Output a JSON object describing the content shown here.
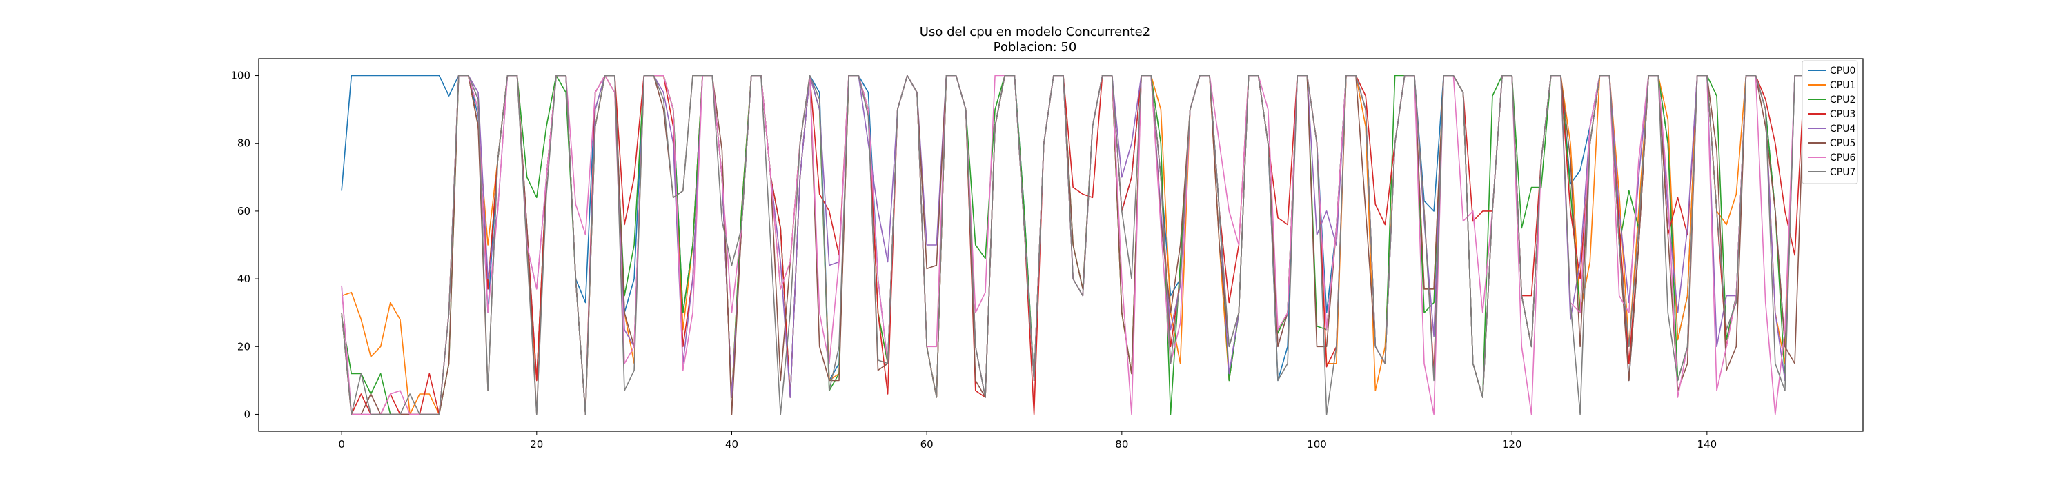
{
  "chart_data": {
    "type": "line",
    "title": "Uso del cpu en modelo Concurrente2",
    "subtitle": "Poblacion: 50",
    "xlabel": "",
    "ylabel": "",
    "xlim": [
      -8.5,
      156
    ],
    "ylim": [
      -5,
      105
    ],
    "x_ticks": [
      0,
      20,
      40,
      60,
      80,
      100,
      120,
      140
    ],
    "y_ticks": [
      0,
      20,
      40,
      60,
      80,
      100
    ],
    "grid": false,
    "legend_position": "top-right",
    "series": [
      {
        "name": "CPU0",
        "color": "#1f77b4",
        "values": [
          66,
          100,
          100,
          100,
          100,
          100,
          100,
          100,
          100,
          100,
          100,
          94,
          100,
          100,
          88,
          30,
          75,
          100,
          100,
          55,
          10,
          70,
          100,
          100,
          40,
          33,
          95,
          100,
          100,
          30,
          40,
          100,
          100,
          100,
          90,
          30,
          50,
          100,
          100,
          70,
          5,
          55,
          100,
          100,
          70,
          55,
          5,
          70,
          100,
          95,
          10,
          15,
          100,
          100,
          95,
          40,
          15,
          90,
          100,
          95,
          20,
          5,
          100,
          100,
          90,
          20,
          5,
          85,
          100,
          100,
          60,
          10,
          80,
          100,
          100,
          40,
          35,
          85,
          100,
          100,
          60,
          70,
          100,
          100,
          70,
          35,
          40,
          90,
          100,
          100,
          60,
          10,
          30,
          100,
          100,
          80,
          10,
          20,
          100,
          100,
          80,
          30,
          55,
          100,
          100,
          90,
          20,
          15,
          80,
          100,
          100,
          63,
          60,
          100,
          100,
          95,
          15,
          5,
          60,
          100,
          100,
          35,
          20,
          75,
          100,
          100,
          68,
          72,
          85,
          100,
          100,
          55,
          10,
          50,
          100,
          100,
          80,
          22,
          35,
          100,
          100,
          60,
          22,
          35,
          100,
          100,
          90,
          60,
          20,
          100,
          100
        ]
      },
      {
        "name": "CPU1",
        "color": "#ff7f0e",
        "values": [
          35,
          36,
          28,
          17,
          20,
          33,
          28,
          0,
          6,
          6,
          0,
          30,
          100,
          100,
          85,
          50,
          75,
          100,
          100,
          50,
          10,
          70,
          100,
          100,
          40,
          0,
          85,
          100,
          95,
          30,
          15,
          100,
          100,
          100,
          90,
          25,
          50,
          100,
          100,
          70,
          5,
          60,
          100,
          100,
          70,
          37,
          45,
          80,
          100,
          90,
          10,
          12,
          100,
          100,
          90,
          30,
          15,
          90,
          100,
          95,
          20,
          5,
          100,
          100,
          90,
          20,
          5,
          85,
          100,
          100,
          55,
          10,
          80,
          100,
          100,
          40,
          35,
          85,
          100,
          100,
          30,
          12,
          100,
          100,
          90,
          30,
          15,
          90,
          100,
          100,
          50,
          10,
          30,
          100,
          100,
          80,
          24,
          30,
          100,
          100,
          80,
          15,
          15,
          100,
          100,
          85,
          7,
          20,
          80,
          100,
          100,
          37,
          37,
          100,
          100,
          95,
          15,
          5,
          60,
          100,
          100,
          35,
          20,
          75,
          100,
          100,
          80,
          30,
          45,
          100,
          100,
          65,
          20,
          60,
          100,
          100,
          87,
          22,
          35,
          100,
          100,
          60,
          56,
          65,
          100,
          100,
          90,
          30,
          15,
          100,
          100
        ]
      },
      {
        "name": "CPU2",
        "color": "#2ca02c",
        "values": [
          29,
          12,
          12,
          6,
          12,
          0,
          0,
          0,
          0,
          0,
          0,
          15,
          100,
          100,
          85,
          37,
          75,
          100,
          100,
          70,
          64,
          85,
          100,
          95,
          40,
          0,
          90,
          100,
          95,
          35,
          50,
          100,
          100,
          100,
          90,
          30,
          50,
          100,
          100,
          70,
          5,
          60,
          100,
          100,
          70,
          55,
          5,
          70,
          100,
          90,
          7,
          12,
          100,
          100,
          90,
          30,
          15,
          90,
          100,
          95,
          20,
          5,
          100,
          100,
          90,
          50,
          46,
          90,
          100,
          100,
          60,
          10,
          80,
          100,
          100,
          50,
          37,
          85,
          100,
          100,
          30,
          12,
          100,
          100,
          80,
          0,
          45,
          90,
          100,
          100,
          60,
          10,
          30,
          100,
          100,
          80,
          24,
          30,
          100,
          100,
          26,
          25,
          55,
          100,
          100,
          90,
          20,
          15,
          100,
          100,
          100,
          30,
          33,
          100,
          100,
          95,
          15,
          5,
          94,
          100,
          100,
          55,
          67,
          67,
          100,
          100,
          66,
          30,
          80,
          100,
          100,
          50,
          66,
          55,
          100,
          100,
          80,
          10,
          20,
          100,
          100,
          94,
          22,
          35,
          100,
          100,
          90,
          60,
          10,
          100,
          100
        ]
      },
      {
        "name": "CPU3",
        "color": "#d62728",
        "values": [
          30,
          0,
          6,
          0,
          0,
          6,
          0,
          0,
          0,
          12,
          0,
          30,
          100,
          100,
          85,
          37,
          75,
          100,
          100,
          55,
          10,
          70,
          100,
          100,
          40,
          0,
          95,
          100,
          100,
          56,
          70,
          100,
          100,
          100,
          85,
          20,
          40,
          100,
          100,
          70,
          5,
          55,
          100,
          100,
          70,
          55,
          5,
          70,
          100,
          65,
          60,
          47,
          100,
          100,
          90,
          30,
          6,
          90,
          100,
          95,
          20,
          5,
          100,
          100,
          90,
          7,
          5,
          85,
          100,
          100,
          55,
          0,
          80,
          100,
          100,
          67,
          65,
          64,
          100,
          100,
          60,
          70,
          100,
          100,
          70,
          20,
          40,
          90,
          100,
          100,
          60,
          33,
          50,
          100,
          100,
          80,
          58,
          56,
          100,
          100,
          80,
          14,
          20,
          100,
          100,
          94,
          62,
          56,
          80,
          100,
          100,
          60,
          12,
          100,
          100,
          95,
          57,
          60,
          60,
          100,
          100,
          35,
          35,
          75,
          100,
          100,
          60,
          40,
          80,
          100,
          100,
          56,
          15,
          50,
          100,
          100,
          53,
          64,
          53,
          100,
          100,
          60,
          20,
          35,
          100,
          100,
          93,
          80,
          60,
          47,
          100
        ]
      },
      {
        "name": "CPU4",
        "color": "#9467bd",
        "values": [
          38,
          0,
          0,
          0,
          0,
          0,
          0,
          0,
          0,
          0,
          0,
          30,
          100,
          100,
          95,
          40,
          60,
          100,
          100,
          50,
          37,
          70,
          100,
          100,
          40,
          0,
          90,
          100,
          100,
          25,
          20,
          100,
          100,
          95,
          80,
          15,
          40,
          100,
          100,
          70,
          5,
          55,
          100,
          100,
          70,
          45,
          5,
          70,
          100,
          90,
          44,
          45,
          100,
          100,
          80,
          60,
          45,
          90,
          100,
          95,
          50,
          50,
          100,
          100,
          90,
          20,
          5,
          85,
          100,
          100,
          55,
          10,
          80,
          100,
          100,
          40,
          35,
          85,
          100,
          100,
          70,
          80,
          100,
          100,
          60,
          25,
          38,
          90,
          100,
          100,
          60,
          12,
          30,
          100,
          100,
          80,
          20,
          30,
          100,
          100,
          53,
          60,
          50,
          100,
          100,
          90,
          20,
          15,
          80,
          100,
          100,
          57,
          23,
          100,
          100,
          95,
          15,
          5,
          60,
          100,
          100,
          35,
          20,
          75,
          100,
          100,
          28,
          45,
          85,
          100,
          100,
          60,
          33,
          70,
          100,
          100,
          60,
          30,
          55,
          100,
          100,
          20,
          35,
          35,
          100,
          100,
          90,
          30,
          10,
          100,
          100
        ]
      },
      {
        "name": "CPU5",
        "color": "#8c564b",
        "values": [
          30,
          0,
          0,
          6,
          0,
          0,
          0,
          0,
          0,
          0,
          0,
          15,
          100,
          100,
          85,
          7,
          75,
          100,
          100,
          55,
          0,
          70,
          100,
          100,
          40,
          0,
          85,
          100,
          100,
          30,
          20,
          100,
          100,
          90,
          64,
          66,
          100,
          100,
          100,
          78,
          0,
          55,
          100,
          100,
          70,
          10,
          45,
          80,
          100,
          20,
          10,
          10,
          100,
          100,
          90,
          13,
          15,
          90,
          100,
          95,
          43,
          44,
          100,
          100,
          90,
          10,
          5,
          85,
          100,
          100,
          55,
          10,
          80,
          100,
          100,
          50,
          37,
          85,
          100,
          100,
          30,
          12,
          100,
          100,
          57,
          30,
          50,
          90,
          100,
          100,
          50,
          20,
          30,
          100,
          100,
          80,
          20,
          30,
          100,
          100,
          20,
          20,
          55,
          100,
          100,
          60,
          20,
          15,
          80,
          100,
          100,
          37,
          37,
          100,
          100,
          95,
          15,
          5,
          60,
          100,
          100,
          35,
          20,
          75,
          100,
          100,
          75,
          20,
          80,
          100,
          100,
          50,
          10,
          50,
          100,
          100,
          53,
          7,
          15,
          100,
          100,
          78,
          13,
          20,
          100,
          100,
          85,
          60,
          20,
          15,
          100
        ]
      },
      {
        "name": "CPU6",
        "color": "#e377c2",
        "values": [
          38,
          0,
          0,
          0,
          0,
          6,
          7,
          0,
          0,
          0,
          0,
          30,
          100,
          100,
          90,
          30,
          60,
          100,
          100,
          50,
          37,
          70,
          100,
          100,
          62,
          53,
          95,
          100,
          95,
          15,
          20,
          100,
          100,
          100,
          90,
          13,
          30,
          100,
          100,
          70,
          30,
          55,
          100,
          100,
          70,
          37,
          45,
          80,
          100,
          30,
          15,
          45,
          100,
          100,
          90,
          40,
          15,
          90,
          100,
          95,
          20,
          20,
          100,
          100,
          90,
          30,
          36,
          100,
          100,
          100,
          55,
          10,
          80,
          100,
          100,
          40,
          35,
          85,
          100,
          100,
          40,
          0,
          100,
          100,
          55,
          15,
          27,
          90,
          100,
          100,
          80,
          60,
          50,
          100,
          100,
          90,
          25,
          30,
          100,
          100,
          80,
          25,
          55,
          100,
          100,
          90,
          20,
          15,
          80,
          100,
          100,
          15,
          0,
          100,
          100,
          57,
          60,
          30,
          60,
          100,
          100,
          20,
          0,
          75,
          100,
          100,
          33,
          30,
          85,
          100,
          100,
          35,
          30,
          75,
          100,
          100,
          65,
          5,
          20,
          100,
          100,
          7,
          20,
          35,
          100,
          100,
          33,
          0,
          25,
          100,
          100
        ]
      },
      {
        "name": "CPU7",
        "color": "#7f7f7f",
        "values": [
          30,
          0,
          12,
          0,
          0,
          0,
          0,
          6,
          0,
          0,
          0,
          30,
          100,
          100,
          93,
          7,
          75,
          100,
          100,
          48,
          0,
          65,
          100,
          100,
          40,
          0,
          85,
          100,
          100,
          7,
          13,
          100,
          100,
          93,
          64,
          66,
          100,
          100,
          100,
          57,
          44,
          55,
          100,
          100,
          50,
          0,
          30,
          80,
          100,
          93,
          7,
          20,
          100,
          100,
          88,
          16,
          15,
          90,
          100,
          95,
          20,
          5,
          100,
          100,
          90,
          20,
          5,
          85,
          100,
          100,
          55,
          10,
          80,
          100,
          100,
          40,
          35,
          85,
          100,
          100,
          60,
          40,
          100,
          100,
          70,
          15,
          40,
          90,
          100,
          100,
          60,
          20,
          30,
          100,
          100,
          80,
          10,
          15,
          100,
          100,
          80,
          0,
          20,
          100,
          100,
          90,
          20,
          15,
          80,
          100,
          100,
          60,
          10,
          100,
          100,
          95,
          15,
          5,
          60,
          100,
          100,
          35,
          20,
          75,
          100,
          100,
          33,
          0,
          80,
          100,
          100,
          50,
          20,
          55,
          100,
          100,
          30,
          10,
          20,
          100,
          100,
          60,
          25,
          33,
          100,
          100,
          90,
          15,
          7,
          100,
          100
        ]
      }
    ]
  }
}
